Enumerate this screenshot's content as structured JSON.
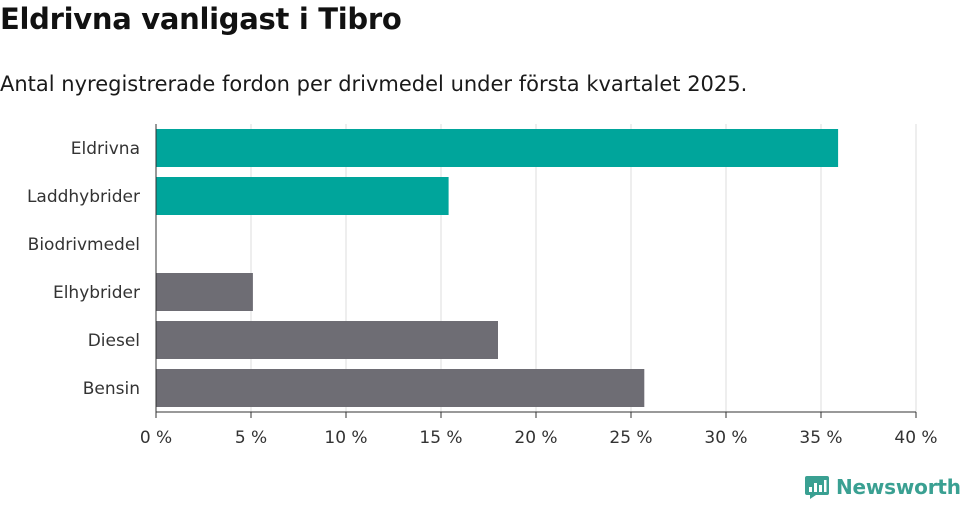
{
  "title": "Eldrivna vanligast i Tibro",
  "subtitle": "Antal nyregistrerade fordon per drivmedel under första kvartalet 2025.",
  "brand": {
    "name": "Newsworthy",
    "icon": "bar-chart-logo-icon",
    "color": "#3aa092"
  },
  "colors": {
    "highlight": "#00a59b",
    "muted": "#6e6d74",
    "grid": "#dddddd",
    "axis": "#333333"
  },
  "chart_data": {
    "type": "bar",
    "orientation": "horizontal",
    "categories": [
      "Eldrivna",
      "Laddhybrider",
      "Biodrivmedel",
      "Elhybrider",
      "Diesel",
      "Bensin"
    ],
    "values": [
      35.9,
      15.4,
      0,
      5.1,
      18.0,
      25.7
    ],
    "bar_colors": [
      "#00a59b",
      "#00a59b",
      "#6e6d74",
      "#6e6d74",
      "#6e6d74",
      "#6e6d74"
    ],
    "xlim": [
      0,
      40
    ],
    "xticks": [
      0,
      5,
      10,
      15,
      20,
      25,
      30,
      35,
      40
    ],
    "xtick_labels": [
      "0 %",
      "5 %",
      "10 %",
      "15 %",
      "20 %",
      "25 %",
      "30 %",
      "35 %",
      "40 %"
    ],
    "grid": "vertical",
    "legend": "none"
  }
}
